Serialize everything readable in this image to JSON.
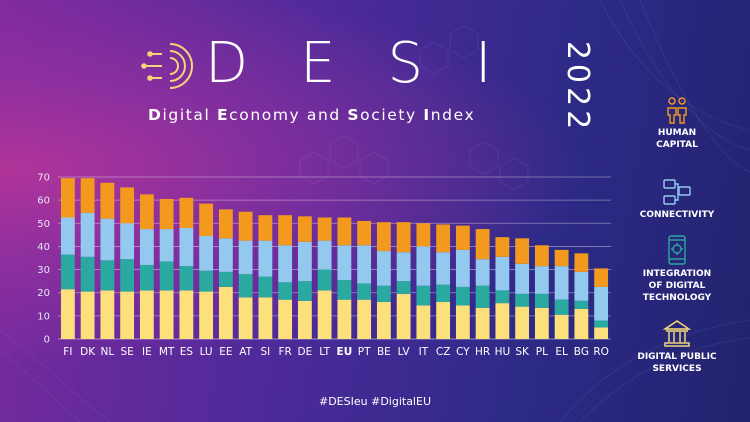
{
  "header": {
    "logo_word": "DESI",
    "year": "2022",
    "subtitle": "Digital Economy and Society Index"
  },
  "legend": [
    {
      "label": "HUMAN\nCAPITAL",
      "icon": "people-icon",
      "color": "#f39a1e"
    },
    {
      "label": "CONNECTIVITY",
      "icon": "network-icon",
      "color": "#93c9ee"
    },
    {
      "label": "INTEGRATION\nOF DIGITAL\nTECHNOLOGY",
      "icon": "phone-chip-icon",
      "color": "#29a9a0"
    },
    {
      "label": "DIGITAL PUBLIC\nSERVICES",
      "icon": "building-icon",
      "color": "#fce07c"
    }
  ],
  "footer": {
    "hashtags": "#DESIeu  #DigitalEU"
  },
  "chart_data": {
    "type": "bar",
    "stacked": true,
    "categories": [
      "FI",
      "DK",
      "NL",
      "SE",
      "IE",
      "MT",
      "ES",
      "LU",
      "EE",
      "AT",
      "SI",
      "FR",
      "DE",
      "LT",
      "EU",
      "PT",
      "BE",
      "LV",
      "IT",
      "CZ",
      "CY",
      "HR",
      "HU",
      "SK",
      "PL",
      "EL",
      "BG",
      "RO"
    ],
    "highlight": "EU",
    "ylim": [
      0,
      70
    ],
    "yticks": [
      0,
      10,
      20,
      30,
      40,
      50,
      60,
      70
    ],
    "grid": true,
    "series": [
      {
        "color": "#fce07c",
        "values": [
          21.5,
          20.5,
          21,
          20.5,
          21,
          21,
          21,
          20.5,
          22.5,
          18,
          18,
          17,
          16.5,
          21,
          17,
          17,
          16,
          19.5,
          14.5,
          16,
          14.5,
          13.5,
          15.5,
          14,
          13.5,
          10.5,
          13,
          5
        ]
      },
      {
        "color": "#29a9a0",
        "values": [
          15,
          15,
          13,
          14,
          11,
          12.5,
          10.5,
          9,
          6.5,
          10,
          9,
          7.5,
          8.5,
          9,
          8.5,
          7,
          7,
          5.5,
          8.5,
          7.5,
          8,
          9.5,
          5.5,
          5.5,
          6,
          6.5,
          3.5,
          3
        ]
      },
      {
        "color": "#93c9ee",
        "values": [
          16,
          19,
          18,
          15.5,
          15.5,
          14,
          16.5,
          15,
          14.5,
          14.5,
          15.5,
          16,
          17,
          12.5,
          15,
          16.5,
          15,
          12.5,
          17,
          14,
          16,
          11.5,
          14.5,
          13,
          12,
          14.5,
          12.5,
          14.5
        ]
      },
      {
        "color": "#f39a1e",
        "values": [
          17,
          15,
          15.5,
          15.5,
          15,
          13,
          13,
          14,
          12.5,
          12.5,
          11,
          13,
          11,
          10,
          12,
          10.5,
          12.5,
          13,
          10,
          12,
          10.5,
          13,
          8.5,
          11,
          9,
          7,
          8,
          8
        ]
      }
    ]
  }
}
